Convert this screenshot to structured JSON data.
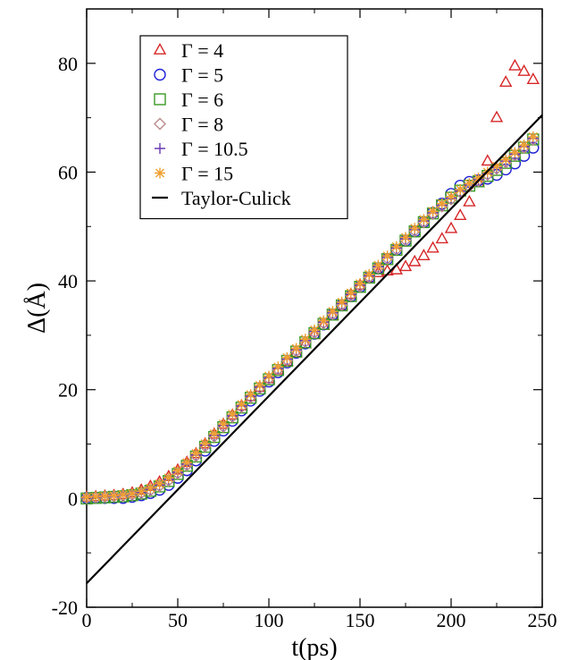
{
  "chart_data": {
    "type": "scatter",
    "title": "",
    "xlabel": "t(ps)",
    "ylabel": "Δ(Å)",
    "xlim": [
      0,
      250
    ],
    "ylim": [
      -20,
      90
    ],
    "x_ticks": [
      "0",
      "50",
      "100",
      "150",
      "200",
      "250"
    ],
    "y_ticks": [
      "-20",
      "0",
      "20",
      "40",
      "60",
      "80"
    ],
    "grid": false,
    "legend_position": "top-left",
    "series": [
      {
        "name": "Γ = 4",
        "marker": "triangle",
        "color": "#d62728",
        "x": [
          0,
          5,
          10,
          15,
          20,
          25,
          30,
          35,
          40,
          45,
          50,
          55,
          60,
          65,
          70,
          75,
          80,
          85,
          90,
          95,
          100,
          105,
          110,
          115,
          120,
          125,
          130,
          135,
          140,
          145,
          150,
          155,
          160,
          165,
          170,
          175,
          180,
          185,
          190,
          195,
          200,
          205,
          210,
          215,
          220,
          225,
          230,
          235,
          240,
          245
        ],
        "y": [
          0.2,
          0.3,
          0.4,
          0.5,
          0.7,
          1.0,
          1.5,
          2.2,
          3.0,
          4.0,
          5.2,
          6.6,
          8.2,
          10.0,
          11.8,
          13.6,
          15.3,
          17.0,
          18.7,
          20.4,
          22.0,
          23.6,
          25.2,
          26.8,
          28.4,
          30.1,
          31.8,
          33.6,
          35.5,
          37.5,
          39.2,
          40.6,
          41.5,
          41.8,
          42.0,
          42.6,
          43.5,
          44.6,
          46.0,
          47.7,
          49.6,
          52.0,
          54.5,
          58.0,
          62.0,
          70.0,
          76.5,
          79.5,
          78.5,
          77.0
        ]
      },
      {
        "name": "Γ = 5",
        "marker": "circle",
        "color": "#1f1fd6",
        "x": [
          0,
          5,
          10,
          15,
          20,
          25,
          30,
          35,
          40,
          45,
          50,
          55,
          60,
          65,
          70,
          75,
          80,
          85,
          90,
          95,
          100,
          105,
          110,
          115,
          120,
          125,
          130,
          135,
          140,
          145,
          150,
          155,
          160,
          165,
          170,
          175,
          180,
          185,
          190,
          195,
          200,
          205,
          210,
          215,
          220,
          225,
          230,
          235,
          240,
          245
        ],
        "y": [
          0.1,
          0.1,
          0.1,
          0.1,
          0.1,
          0.3,
          0.6,
          1.0,
          1.6,
          2.5,
          3.8,
          5.2,
          7.0,
          8.8,
          10.6,
          12.5,
          14.3,
          16.2,
          18.0,
          19.8,
          21.5,
          23.2,
          25.0,
          26.8,
          28.5,
          30.3,
          32.0,
          33.8,
          35.5,
          37.2,
          38.9,
          40.6,
          42.3,
          44.0,
          45.7,
          47.4,
          49.1,
          50.8,
          52.5,
          54.2,
          56.0,
          57.5,
          58.2,
          58.5,
          58.8,
          59.5,
          60.5,
          61.6,
          63.0,
          64.5
        ]
      },
      {
        "name": "Γ = 6",
        "marker": "square",
        "color": "#3a9a24",
        "x": [
          0,
          5,
          10,
          15,
          20,
          25,
          30,
          35,
          40,
          45,
          50,
          55,
          60,
          65,
          70,
          75,
          80,
          85,
          90,
          95,
          100,
          105,
          110,
          115,
          120,
          125,
          130,
          135,
          140,
          145,
          150,
          155,
          160,
          165,
          170,
          175,
          180,
          185,
          190,
          195,
          200,
          205,
          210,
          215,
          220,
          225,
          230,
          235,
          240,
          245
        ],
        "y": [
          0.0,
          0.1,
          0.2,
          0.3,
          0.4,
          0.6,
          0.9,
          1.4,
          2.2,
          3.2,
          4.5,
          6.0,
          7.7,
          9.5,
          11.3,
          13.1,
          14.9,
          16.7,
          18.5,
          20.2,
          21.9,
          23.6,
          25.3,
          27.0,
          28.7,
          30.4,
          32.1,
          33.8,
          35.5,
          37.2,
          38.9,
          40.6,
          42.3,
          44.0,
          45.7,
          47.4,
          49.1,
          50.8,
          52.4,
          53.9,
          55.3,
          56.6,
          57.5,
          58.3,
          59.3,
          60.4,
          61.7,
          63.0,
          64.5,
          66.0
        ]
      },
      {
        "name": "Γ = 8",
        "marker": "diamond",
        "color": "#b88a8a",
        "x": [
          0,
          5,
          10,
          15,
          20,
          25,
          30,
          35,
          40,
          45,
          50,
          55,
          60,
          65,
          70,
          75,
          80,
          85,
          90,
          95,
          100,
          105,
          110,
          115,
          120,
          125,
          130,
          135,
          140,
          145,
          150,
          155,
          160,
          165,
          170,
          175,
          180,
          185,
          190,
          195,
          200,
          205,
          210,
          215,
          220,
          225,
          230,
          235,
          240,
          245
        ],
        "y": [
          0.1,
          0.2,
          0.3,
          0.4,
          0.5,
          0.7,
          1.0,
          1.5,
          2.3,
          3.3,
          4.6,
          6.1,
          7.8,
          9.6,
          11.4,
          13.2,
          15.0,
          16.8,
          18.6,
          20.3,
          22.0,
          23.7,
          25.4,
          27.1,
          28.8,
          30.5,
          32.2,
          33.9,
          35.6,
          37.3,
          39.0,
          40.7,
          42.4,
          44.1,
          45.8,
          47.5,
          49.2,
          50.8,
          52.3,
          53.7,
          55.0,
          56.3,
          57.4,
          58.4,
          59.5,
          60.6,
          61.8,
          63.1,
          64.5,
          66.0
        ]
      },
      {
        "name": "Γ = 10.5",
        "marker": "plus",
        "color": "#6a3ab2",
        "x": [
          0,
          5,
          10,
          15,
          20,
          25,
          30,
          35,
          40,
          45,
          50,
          55,
          60,
          65,
          70,
          75,
          80,
          85,
          90,
          95,
          100,
          105,
          110,
          115,
          120,
          125,
          130,
          135,
          140,
          145,
          150,
          155,
          160,
          165,
          170,
          175,
          180,
          185,
          190,
          195,
          200,
          205,
          210,
          215,
          220,
          225,
          230,
          235,
          240,
          245
        ],
        "y": [
          0.1,
          0.2,
          0.3,
          0.4,
          0.6,
          0.8,
          1.1,
          1.7,
          2.5,
          3.5,
          4.8,
          6.3,
          8.0,
          9.8,
          11.6,
          13.4,
          15.2,
          17.0,
          18.8,
          20.5,
          22.2,
          23.9,
          25.6,
          27.3,
          29.0,
          30.7,
          32.4,
          34.1,
          35.8,
          37.5,
          39.2,
          40.9,
          42.6,
          44.3,
          46.0,
          47.7,
          49.4,
          51.0,
          52.5,
          53.9,
          55.2,
          56.5,
          57.6,
          58.6,
          59.7,
          60.8,
          62.0,
          63.3,
          64.7,
          66.2
        ]
      },
      {
        "name": "Γ = 15",
        "marker": "star",
        "color": "#f0a030",
        "x": [
          0,
          5,
          10,
          15,
          20,
          25,
          30,
          35,
          40,
          45,
          50,
          55,
          60,
          65,
          70,
          75,
          80,
          85,
          90,
          95,
          100,
          105,
          110,
          115,
          120,
          125,
          130,
          135,
          140,
          145,
          150,
          155,
          160,
          165,
          170,
          175,
          180,
          185,
          190,
          195,
          200,
          205,
          210,
          215,
          220,
          225,
          230,
          235,
          240,
          245
        ],
        "y": [
          0.2,
          0.3,
          0.4,
          0.5,
          0.7,
          0.9,
          1.3,
          1.9,
          2.7,
          3.8,
          5.1,
          6.6,
          8.3,
          10.1,
          11.9,
          13.7,
          15.5,
          17.3,
          19.1,
          20.8,
          22.5,
          24.2,
          25.9,
          27.6,
          29.3,
          31.0,
          32.7,
          34.4,
          36.1,
          37.8,
          39.5,
          41.2,
          42.9,
          44.6,
          46.3,
          48.0,
          49.7,
          51.3,
          52.8,
          54.2,
          55.5,
          56.8,
          57.9,
          58.9,
          60.0,
          61.1,
          62.3,
          63.6,
          65.0,
          66.5
        ]
      },
      {
        "name": "Taylor-Culick",
        "marker": "line",
        "color": "#000000",
        "x": [
          0,
          250
        ],
        "y": [
          -15.6,
          70.5
        ]
      }
    ]
  }
}
